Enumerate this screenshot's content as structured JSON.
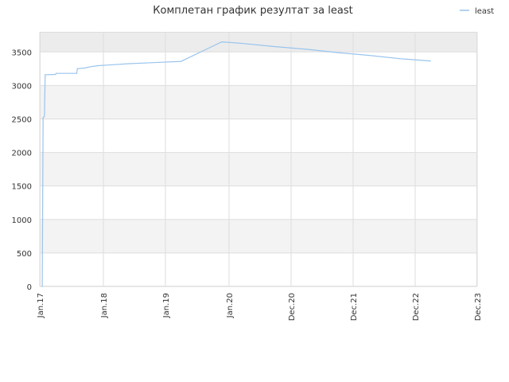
{
  "chart_data": {
    "type": "line",
    "title": "Комплетан график резултат за least",
    "xlabel": "",
    "ylabel": "",
    "x_ticks": [
      "Jan.17",
      "Jan.18",
      "Jan.19",
      "Jan.20",
      "Dec.20",
      "Dec.21",
      "Dec.22",
      "Dec.23"
    ],
    "y_ticks": [
      0,
      500,
      1000,
      1500,
      2000,
      2500,
      3000,
      3500
    ],
    "ylim": [
      0,
      3800
    ],
    "grid": true,
    "legend_position": "top-right",
    "series": [
      {
        "name": "least",
        "color": "#99c4ed",
        "points": [
          {
            "x": "2017-01-15",
            "y": 0
          },
          {
            "x": "2017-01-20",
            "y": 2520
          },
          {
            "x": "2017-01-28",
            "y": 2540
          },
          {
            "x": "2017-02-01",
            "y": 3160
          },
          {
            "x": "2017-04-01",
            "y": 3165
          },
          {
            "x": "2017-04-05",
            "y": 3180
          },
          {
            "x": "2017-08-01",
            "y": 3180
          },
          {
            "x": "2017-08-05",
            "y": 3250
          },
          {
            "x": "2017-09-15",
            "y": 3260
          },
          {
            "x": "2017-10-20",
            "y": 3280
          },
          {
            "x": "2017-12-01",
            "y": 3295
          },
          {
            "x": "2018-03-01",
            "y": 3310
          },
          {
            "x": "2018-06-01",
            "y": 3325
          },
          {
            "x": "2018-09-01",
            "y": 3335
          },
          {
            "x": "2018-12-01",
            "y": 3345
          },
          {
            "x": "2019-04-01",
            "y": 3360
          },
          {
            "x": "2019-11-20",
            "y": 3650
          },
          {
            "x": "2020-03-01",
            "y": 3630
          },
          {
            "x": "2020-09-01",
            "y": 3580
          },
          {
            "x": "2021-03-01",
            "y": 3540
          },
          {
            "x": "2021-09-01",
            "y": 3490
          },
          {
            "x": "2022-03-01",
            "y": 3450
          },
          {
            "x": "2022-09-01",
            "y": 3400
          },
          {
            "x": "2023-03-01",
            "y": 3365
          }
        ]
      }
    ]
  }
}
